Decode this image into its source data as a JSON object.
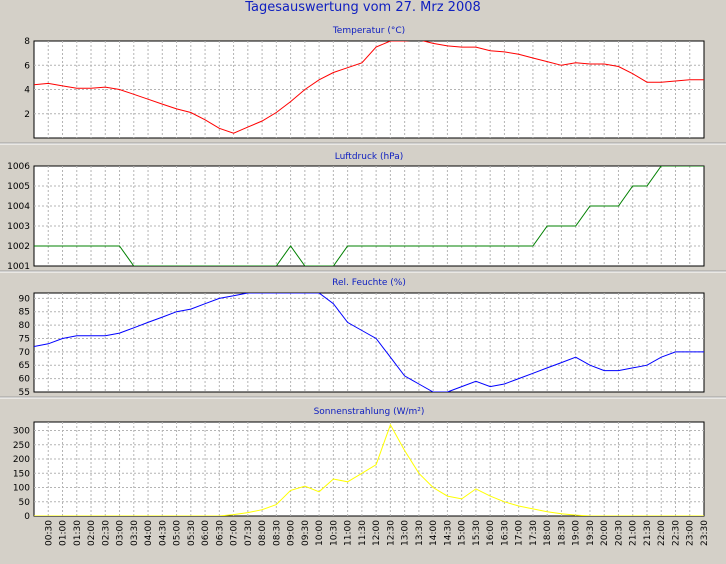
{
  "title": "Tagesauswertung vom 27. Mrz 2008",
  "colors": {
    "background": "#d4d0c8",
    "plot_background": "#ffffff",
    "grid": "#b4b4b4",
    "title_text": "#1020c0",
    "axis_text": "#000000"
  },
  "time_labels": [
    "00:30",
    "01:00",
    "01:30",
    "02:00",
    "02:30",
    "03:00",
    "03:30",
    "04:00",
    "04:30",
    "05:00",
    "05:30",
    "06:00",
    "06:30",
    "07:00",
    "07:30",
    "08:00",
    "08:30",
    "09:00",
    "09:30",
    "10:00",
    "10:30",
    "11:00",
    "11:30",
    "12:00",
    "12:30",
    "13:00",
    "13:30",
    "14:00",
    "14:30",
    "15:00",
    "15:30",
    "16:00",
    "16:30",
    "17:00",
    "17:30",
    "18:00",
    "18:30",
    "19:00",
    "19:30",
    "20:00",
    "20:30",
    "21:00",
    "21:30",
    "22:00",
    "22:30",
    "23:00",
    "23:30"
  ],
  "chart_data": [
    {
      "type": "line",
      "title": "Temperatur (°C)",
      "color": "#ff0000",
      "ylim": [
        0,
        8
      ],
      "yticks": [
        2,
        4,
        6,
        8
      ],
      "grid": true,
      "x": [
        "00:00",
        "00:30",
        "01:00",
        "01:30",
        "02:00",
        "02:30",
        "03:00",
        "03:30",
        "04:00",
        "04:30",
        "05:00",
        "05:30",
        "06:00",
        "06:30",
        "07:00",
        "07:30",
        "08:00",
        "08:30",
        "09:00",
        "09:30",
        "10:00",
        "10:30",
        "11:00",
        "11:30",
        "12:00",
        "12:30",
        "13:00",
        "13:30",
        "14:00",
        "14:30",
        "15:00",
        "15:30",
        "16:00",
        "16:30",
        "17:00",
        "17:30",
        "18:00",
        "18:30",
        "19:00",
        "19:30",
        "20:00",
        "20:30",
        "21:00",
        "21:30",
        "22:00",
        "22:30",
        "23:00",
        "23:30"
      ],
      "values": [
        4.4,
        4.5,
        4.3,
        4.1,
        4.1,
        4.2,
        4.0,
        3.6,
        3.2,
        2.8,
        2.4,
        2.1,
        1.5,
        0.8,
        0.4,
        0.9,
        1.4,
        2.1,
        3.0,
        4.0,
        4.8,
        5.4,
        5.8,
        6.2,
        7.5,
        8.0,
        8.0,
        8.1,
        7.8,
        7.6,
        7.5,
        7.5,
        7.2,
        7.1,
        6.9,
        6.6,
        6.3,
        6.0,
        6.2,
        6.1,
        6.1,
        5.9,
        5.3,
        4.6,
        4.6,
        4.7,
        4.8,
        4.8
      ]
    },
    {
      "type": "line",
      "title": "Luftdruck (hPa)",
      "color": "#008000",
      "ylim": [
        1001,
        1006
      ],
      "yticks": [
        1001,
        1002,
        1003,
        1004,
        1005,
        1006
      ],
      "grid": true,
      "x": [
        "00:00",
        "00:30",
        "01:00",
        "01:30",
        "02:00",
        "02:30",
        "03:00",
        "03:30",
        "04:00",
        "04:30",
        "05:00",
        "05:30",
        "06:00",
        "06:30",
        "07:00",
        "07:30",
        "08:00",
        "08:30",
        "09:00",
        "09:30",
        "10:00",
        "10:30",
        "11:00",
        "11:30",
        "12:00",
        "12:30",
        "13:00",
        "13:30",
        "14:00",
        "14:30",
        "15:00",
        "15:30",
        "16:00",
        "16:30",
        "17:00",
        "17:30",
        "18:00",
        "18:30",
        "19:00",
        "19:30",
        "20:00",
        "20:30",
        "21:00",
        "21:30",
        "22:00",
        "22:30",
        "23:00",
        "23:30"
      ],
      "values": [
        1002,
        1002,
        1002,
        1002,
        1002,
        1002,
        1002,
        1001,
        1001,
        1001,
        1001,
        1001,
        1001,
        1001,
        1001,
        1001,
        1001,
        1001,
        1002,
        1001,
        1001,
        1001,
        1002,
        1002,
        1002,
        1002,
        1002,
        1002,
        1002,
        1002,
        1002,
        1002,
        1002,
        1002,
        1002,
        1002,
        1003,
        1003,
        1003,
        1004,
        1004,
        1004,
        1005,
        1005,
        1006,
        1006,
        1006,
        1006
      ]
    },
    {
      "type": "line",
      "title": "Rel. Feuchte (%)",
      "color": "#0000ff",
      "ylim": [
        55,
        92
      ],
      "yticks": [
        55,
        60,
        65,
        70,
        75,
        80,
        85,
        90
      ],
      "grid": true,
      "x": [
        "00:00",
        "00:30",
        "01:00",
        "01:30",
        "02:00",
        "02:30",
        "03:00",
        "03:30",
        "04:00",
        "04:30",
        "05:00",
        "05:30",
        "06:00",
        "06:30",
        "07:00",
        "07:30",
        "08:00",
        "08:30",
        "09:00",
        "09:30",
        "10:00",
        "10:30",
        "11:00",
        "11:30",
        "12:00",
        "12:30",
        "13:00",
        "13:30",
        "14:00",
        "14:30",
        "15:00",
        "15:30",
        "16:00",
        "16:30",
        "17:00",
        "17:30",
        "18:00",
        "18:30",
        "19:00",
        "19:30",
        "20:00",
        "20:30",
        "21:00",
        "21:30",
        "22:00",
        "22:30",
        "23:00",
        "23:30"
      ],
      "values": [
        72,
        73,
        75,
        76,
        76,
        76,
        77,
        79,
        81,
        83,
        85,
        86,
        88,
        90,
        91,
        92,
        92,
        92,
        92,
        92,
        92,
        88,
        81,
        78,
        75,
        68,
        61,
        58,
        55,
        55,
        57,
        59,
        57,
        58,
        60,
        62,
        64,
        66,
        68,
        65,
        63,
        63,
        64,
        65,
        68,
        70,
        70,
        70
      ]
    },
    {
      "type": "line",
      "title": "Sonnenstrahlung (W/m²)",
      "color": "#ffff00",
      "ylim": [
        0,
        330
      ],
      "yticks": [
        0,
        50,
        100,
        150,
        200,
        250,
        300
      ],
      "grid": true,
      "x": [
        "00:00",
        "00:30",
        "01:00",
        "01:30",
        "02:00",
        "02:30",
        "03:00",
        "03:30",
        "04:00",
        "04:30",
        "05:00",
        "05:30",
        "06:00",
        "06:30",
        "07:00",
        "07:30",
        "08:00",
        "08:30",
        "09:00",
        "09:30",
        "10:00",
        "10:30",
        "11:00",
        "11:30",
        "12:00",
        "12:30",
        "13:00",
        "13:30",
        "14:00",
        "14:30",
        "15:00",
        "15:30",
        "16:00",
        "16:30",
        "17:00",
        "17:30",
        "18:00",
        "18:30",
        "19:00",
        "19:30",
        "20:00",
        "20:30",
        "21:00",
        "21:30",
        "22:00",
        "22:30",
        "23:00",
        "23:30"
      ],
      "values": [
        0,
        0,
        0,
        0,
        0,
        0,
        0,
        0,
        0,
        0,
        0,
        0,
        0,
        0,
        5,
        12,
        22,
        40,
        90,
        105,
        85,
        130,
        120,
        150,
        180,
        320,
        230,
        150,
        100,
        70,
        60,
        95,
        70,
        50,
        35,
        25,
        15,
        8,
        3,
        0,
        0,
        0,
        0,
        0,
        0,
        0,
        0,
        0
      ]
    }
  ]
}
